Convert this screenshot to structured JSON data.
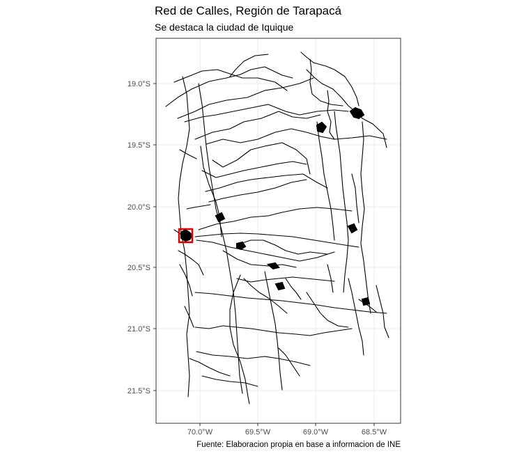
{
  "title": "Red de Calles, Región de Tarapacá",
  "subtitle": "Se destaca la ciudad de Iquique",
  "caption": "Fuente: Elaboracion propia en base a informacion de INE",
  "map": {
    "lat_ticks": [
      "19.0°S",
      "19.5°S",
      "20.0°S",
      "20.5°S",
      "21.0°S",
      "21.5°S"
    ],
    "lon_ticks": [
      "70.0°W",
      "69.5°W",
      "69.0°W",
      "68.5°W"
    ],
    "highlight": {
      "name": "Iquique",
      "color": "#e00000"
    },
    "road_color": "#000000",
    "grid_color": "#ebebeb",
    "panel_border_color": "#333333"
  }
}
